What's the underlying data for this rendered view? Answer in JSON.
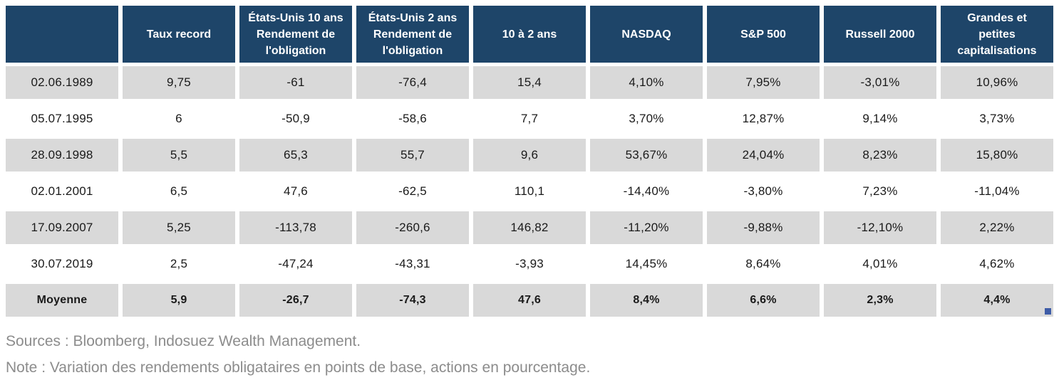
{
  "table": {
    "columns": [
      "",
      "Taux record",
      "États-Unis 10 ans\nRendement de\nl'obligation",
      "États-Unis 2 ans\nRendement de\nl'obligation",
      "10 à 2 ans",
      "NASDAQ",
      "S&P 500",
      "Russell 2000",
      "Grandes et\npetites\ncapitalisations"
    ],
    "rows": [
      {
        "date": "02.06.1989",
        "values": [
          "9,75",
          "-61",
          "-76,4",
          "15,4",
          "4,10%",
          "7,95%",
          "-3,01%",
          "10,96%"
        ]
      },
      {
        "date": "05.07.1995",
        "values": [
          "6",
          "-50,9",
          "-58,6",
          "7,7",
          "3,70%",
          "12,87%",
          "9,14%",
          "3,73%"
        ]
      },
      {
        "date": "28.09.1998",
        "values": [
          "5,5",
          "65,3",
          "55,7",
          "9,6",
          "53,67%",
          "24,04%",
          "8,23%",
          "15,80%"
        ]
      },
      {
        "date": "02.01.2001",
        "values": [
          "6,5",
          "47,6",
          "-62,5",
          "110,1",
          "-14,40%",
          "-3,80%",
          "7,23%",
          "-11,04%"
        ]
      },
      {
        "date": "17.09.2007",
        "values": [
          "5,25",
          "-113,78",
          "-260,6",
          "146,82",
          "-11,20%",
          "-9,88%",
          "-12,10%",
          "2,22%"
        ]
      },
      {
        "date": "30.07.2019",
        "values": [
          "2,5",
          "-47,24",
          "-43,31",
          "-3,93",
          "14,45%",
          "8,64%",
          "4,01%",
          "4,62%"
        ]
      },
      {
        "date": "Moyenne",
        "values": [
          "5,9",
          "-26,7",
          "-74,3",
          "47,6",
          "8,4%",
          "6,6%",
          "2,3%",
          "4,4%"
        ]
      }
    ]
  },
  "footer": {
    "sources": "Sources : Bloomberg, Indosuez Wealth Management.",
    "note": "Note : Variation des rendements obligataires en points de base, actions en pourcentage."
  },
  "colors": {
    "header_bg": "#1E4569",
    "row_alt_bg": "#D9D9D9",
    "footer_text": "#8C8C8C",
    "selection_handle": "#3E5CA7"
  },
  "chart_data": {
    "type": "table",
    "columns": [
      "",
      "Taux record",
      "États-Unis 10 ans Rendement de l'obligation",
      "États-Unis 2 ans Rendement de l'obligation",
      "10 à 2 ans",
      "NASDAQ",
      "S&P 500",
      "Russell 2000",
      "Grandes et petites capitalisations"
    ],
    "rows": [
      [
        "02.06.1989",
        9.75,
        -61,
        -76.4,
        15.4,
        "4,10%",
        "7,95%",
        "-3,01%",
        "10,96%"
      ],
      [
        "05.07.1995",
        6,
        -50.9,
        -58.6,
        7.7,
        "3,70%",
        "12,87%",
        "9,14%",
        "3,73%"
      ],
      [
        "28.09.1998",
        5.5,
        65.3,
        55.7,
        9.6,
        "53,67%",
        "24,04%",
        "8,23%",
        "15,80%"
      ],
      [
        "02.01.2001",
        6.5,
        47.6,
        -62.5,
        110.1,
        "-14,40%",
        "-3,80%",
        "7,23%",
        "-11,04%"
      ],
      [
        "17.09.2007",
        5.25,
        -113.78,
        -260.6,
        146.82,
        "-11,20%",
        "-9,88%",
        "-12,10%",
        "2,22%"
      ],
      [
        "30.07.2019",
        2.5,
        -47.24,
        -43.31,
        -3.93,
        "14,45%",
        "8,64%",
        "4,01%",
        "4,62%"
      ],
      [
        "Moyenne",
        5.9,
        -26.7,
        -74.3,
        47.6,
        "8,4%",
        "6,6%",
        "2,3%",
        "4,4%"
      ]
    ],
    "annotations": [
      "Sources : Bloomberg, Indosuez Wealth Management.",
      "Note : Variation des rendements obligataires en points de base, actions en pourcentage."
    ]
  }
}
